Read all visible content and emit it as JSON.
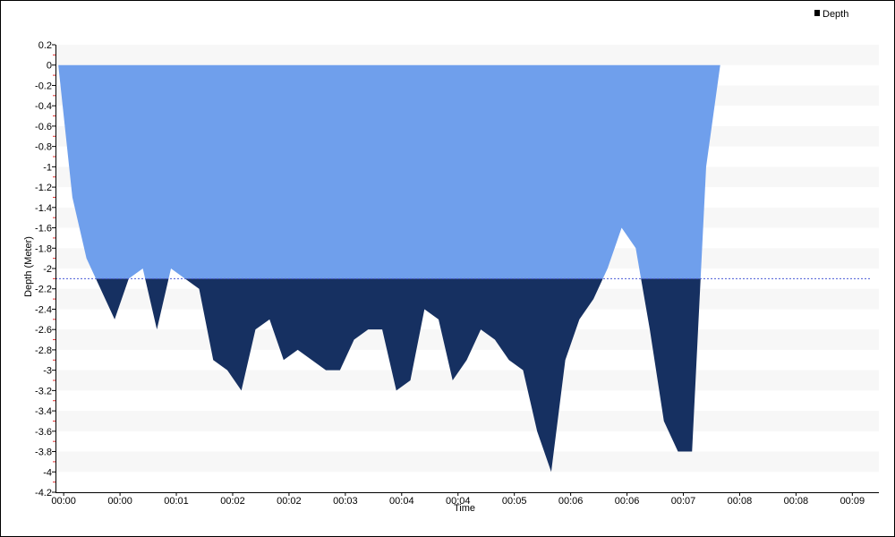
{
  "chart_data": {
    "type": "area",
    "xlabel": "Time",
    "ylabel": "Depth (Meter)",
    "ylim": [
      -4.2,
      0.2
    ],
    "y_ticks": [
      0.2,
      0,
      -0.2,
      -0.4,
      -0.6,
      -0.8,
      -1,
      -1.2,
      -1.4,
      -1.6,
      -1.8,
      -2,
      -2.2,
      -2.4,
      -2.6,
      -2.8,
      -3,
      -3.2,
      -3.4,
      -3.6,
      -3.8,
      -4,
      -4.2
    ],
    "y_tick_labels": [
      "0.2",
      "0",
      "-0.2",
      "-0.4",
      "-0.6",
      "-0.8",
      "-1",
      "-1.2",
      "-1.4",
      "-1.6",
      "-1.8",
      "-2",
      "-2.2",
      "-2.4",
      "-2.6",
      "-2.8",
      "-3",
      "-3.2",
      "-3.4",
      "-3.6",
      "-3.8",
      "-4",
      "-4.2"
    ],
    "x_tick_labels": [
      "00:00",
      "00:00",
      "00:01",
      "00:02",
      "00:02",
      "00:03",
      "00:04",
      "00:04",
      "00:05",
      "00:06",
      "00:06",
      "00:07",
      "00:08",
      "00:08",
      "00:09"
    ],
    "x_tick_seconds": [
      0,
      30,
      60,
      90,
      120,
      150,
      180,
      210,
      240,
      270,
      300,
      330,
      360,
      390,
      420
    ],
    "xlim_seconds": [
      -1.5,
      437
    ],
    "threshold": -2.1,
    "legend": {
      "position": "top-right",
      "label": "Depth"
    },
    "grid": "horizontal-bands",
    "colors": {
      "above_threshold": "#6f9fec",
      "below_threshold": "#163061",
      "threshold_line": "#4a5bd6",
      "band": "#f7f7f7",
      "tick_minor": "#e03030"
    },
    "series": [
      {
        "name": "Depth",
        "x_seconds": [
          0,
          7.5,
          15,
          22.5,
          30,
          37.5,
          45,
          52.5,
          60,
          67.5,
          75,
          82.5,
          90,
          97.5,
          105,
          112.5,
          120,
          127.5,
          135,
          142.5,
          150,
          157.5,
          165,
          172.5,
          180,
          187.5,
          195,
          202.5,
          210,
          217.5,
          225,
          232.5,
          240,
          247.5,
          255,
          262.5,
          270,
          277.5,
          285,
          292.5,
          300,
          307.5,
          315,
          322.5,
          330,
          337.5,
          345,
          352.5
        ],
        "y": [
          0,
          -1.3,
          -1.9,
          -2.2,
          -2.5,
          -2.1,
          -2.0,
          -2.6,
          -2.0,
          -2.1,
          -2.2,
          -2.9,
          -3.0,
          -3.2,
          -2.6,
          -2.5,
          -2.9,
          -2.8,
          -2.9,
          -3.0,
          -3.0,
          -2.7,
          -2.6,
          -2.6,
          -3.2,
          -3.1,
          -2.4,
          -2.5,
          -3.1,
          -2.9,
          -2.6,
          -2.7,
          -2.9,
          -3.0,
          -3.6,
          -4.0,
          -2.9,
          -2.5,
          -2.3,
          -2.0,
          -1.6,
          -1.8,
          -2.6,
          -3.5,
          -3.8,
          -3.8,
          -1.0,
          0
        ]
      }
    ]
  }
}
